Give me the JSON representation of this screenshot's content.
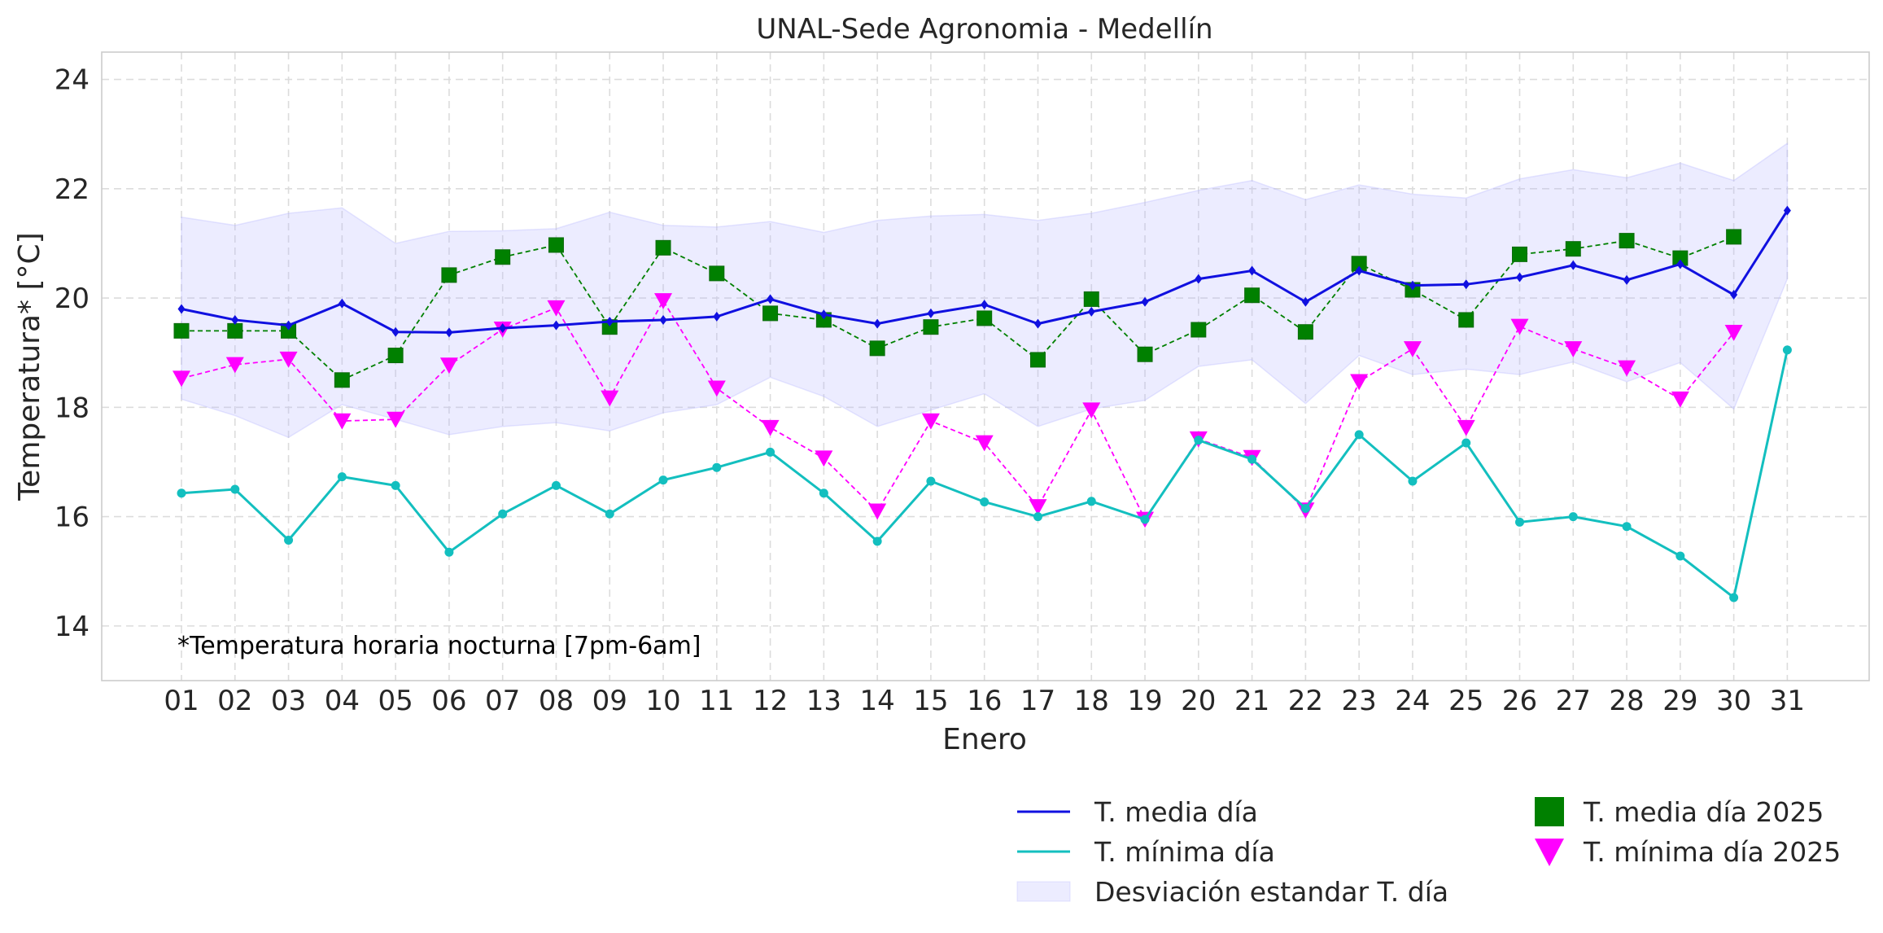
{
  "chart_data": {
    "type": "line",
    "title": "UNAL-Sede Agronomia - Medellín",
    "xlabel": "Enero",
    "ylabel": "Temperatura* [°C]",
    "annotation": "*Temperatura horaria nocturna [7pm-6am]",
    "ylim": [
      13,
      24.5
    ],
    "yticks": [
      14,
      16,
      18,
      20,
      22,
      24
    ],
    "grid": true,
    "legend_position": "bottom-right, outside plot",
    "categories": [
      "01",
      "02",
      "03",
      "04",
      "05",
      "06",
      "07",
      "08",
      "09",
      "10",
      "11",
      "12",
      "13",
      "14",
      "15",
      "16",
      "17",
      "18",
      "19",
      "20",
      "21",
      "22",
      "23",
      "24",
      "25",
      "26",
      "27",
      "28",
      "29",
      "30",
      "31"
    ],
    "series": [
      {
        "name": "T. media día",
        "style": "line",
        "marker": "diamond",
        "color": "#1010e0",
        "values": [
          19.8,
          19.6,
          19.5,
          19.9,
          19.38,
          19.37,
          19.45,
          19.5,
          19.57,
          19.6,
          19.66,
          19.98,
          19.7,
          19.53,
          19.72,
          19.88,
          19.53,
          19.75,
          19.93,
          20.35,
          20.5,
          19.93,
          20.5,
          20.23,
          20.25,
          20.38,
          20.6,
          20.33,
          20.62,
          20.06,
          21.6
        ]
      },
      {
        "name": "T. mínima día",
        "style": "line",
        "marker": "circle",
        "color": "#13bfbf",
        "values": [
          16.43,
          16.5,
          15.57,
          16.73,
          16.57,
          15.35,
          16.05,
          16.57,
          16.05,
          16.67,
          16.9,
          17.18,
          16.43,
          15.55,
          16.65,
          16.27,
          16.0,
          16.28,
          15.95,
          17.4,
          17.05,
          16.15,
          17.5,
          16.65,
          17.35,
          15.9,
          16.0,
          15.82,
          15.28,
          14.52,
          19.05
        ]
      },
      {
        "name": "Desviación estandar T. día",
        "style": "band",
        "color": "#b8b8ff",
        "upper": [
          21.48,
          21.33,
          21.55,
          21.65,
          21.0,
          21.22,
          21.23,
          21.27,
          21.57,
          21.33,
          21.3,
          21.4,
          21.2,
          21.42,
          21.5,
          21.53,
          21.42,
          21.55,
          21.75,
          21.97,
          22.15,
          21.8,
          22.07,
          21.9,
          21.83,
          22.18,
          22.35,
          22.2,
          22.47,
          22.15,
          22.83
        ],
        "lower": [
          18.15,
          17.85,
          17.45,
          18.05,
          17.78,
          17.5,
          17.65,
          17.72,
          17.57,
          17.9,
          18.05,
          18.55,
          18.2,
          17.65,
          17.95,
          18.25,
          17.65,
          17.97,
          18.13,
          18.75,
          18.87,
          18.07,
          18.95,
          18.6,
          18.7,
          18.6,
          18.83,
          18.47,
          18.82,
          17.97,
          20.35
        ]
      },
      {
        "name": "T. media día 2025",
        "style": "markers-dashed",
        "marker": "square",
        "color": "#008000",
        "values": [
          19.4,
          19.4,
          19.4,
          18.5,
          18.95,
          20.42,
          20.75,
          20.97,
          19.47,
          20.92,
          20.45,
          19.72,
          19.6,
          19.08,
          19.47,
          19.63,
          18.87,
          19.98,
          18.97,
          19.42,
          20.05,
          19.38,
          20.63,
          20.15,
          19.6,
          20.8,
          20.9,
          21.05,
          20.73,
          21.12,
          null
        ]
      },
      {
        "name": "T. mínima día 2025",
        "style": "markers-dashed",
        "marker": "triangle-down",
        "color": "#ff00ff",
        "values": [
          18.53,
          18.78,
          18.88,
          17.75,
          17.78,
          18.77,
          19.43,
          19.82,
          18.17,
          19.95,
          18.35,
          17.63,
          17.07,
          16.1,
          17.75,
          17.35,
          16.18,
          17.95,
          15.95,
          17.42,
          17.08,
          16.12,
          18.47,
          19.07,
          17.63,
          19.48,
          19.07,
          18.72,
          18.15,
          19.37,
          null
        ]
      }
    ]
  }
}
